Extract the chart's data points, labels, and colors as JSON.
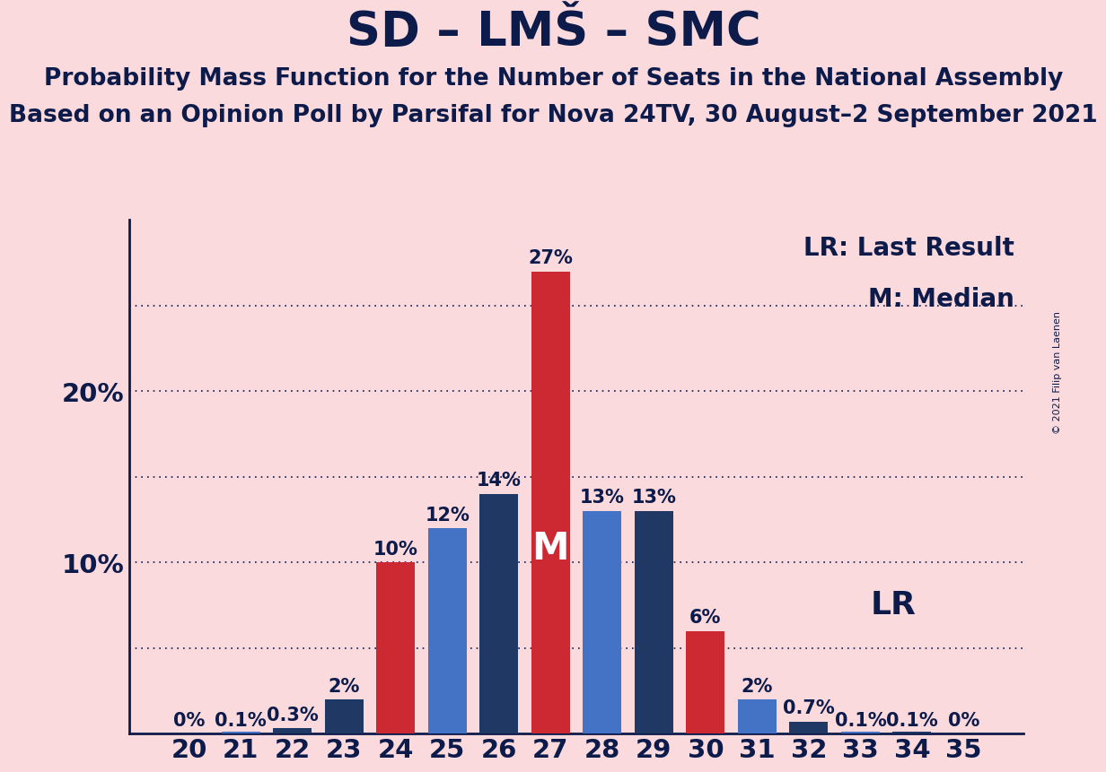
{
  "title": "SD – LMŠ – SMC",
  "subtitle1": "Probability Mass Function for the Number of Seats in the National Assembly",
  "subtitle2": "Based on an Opinion Poll by Parsifal for Nova 24TV, 30 August–2 September 2021",
  "copyright": "© 2021 Filip van Laenen",
  "seats": [
    20,
    21,
    22,
    23,
    24,
    25,
    26,
    27,
    28,
    29,
    30,
    31,
    32,
    33,
    34,
    35
  ],
  "values": [
    0.0,
    0.1,
    0.3,
    2.0,
    10.0,
    12.0,
    14.0,
    27.0,
    13.0,
    13.0,
    6.0,
    2.0,
    0.7,
    0.1,
    0.1,
    0.0
  ],
  "labels": [
    "0%",
    "0.1%",
    "0.3%",
    "2%",
    "10%",
    "12%",
    "14%",
    "27%",
    "13%",
    "13%",
    "6%",
    "2%",
    "0.7%",
    "0.1%",
    "0.1%",
    "0%"
  ],
  "colors": [
    "#CC2933",
    "#4472C4",
    "#1F3864",
    "#1F3864",
    "#CC2933",
    "#4472C4",
    "#1F3864",
    "#CC2933",
    "#4472C4",
    "#1F3864",
    "#CC2933",
    "#4472C4",
    "#1F3864",
    "#4472C4",
    "#1F3864",
    "#CC2933"
  ],
  "median_seat": 27,
  "lr_seat": 32,
  "background_color": "#FADADD",
  "lr_label_text": "LR",
  "m_label_text": "M",
  "lr_legend": "LR: Last Result",
  "m_legend": "M: Median",
  "ylim_max": 30,
  "title_fontsize": 38,
  "subtitle_fontsize": 19,
  "label_fontsize": 15,
  "tick_fontsize": 21,
  "legend_fontsize": 20,
  "lr_inline_fontsize": 26,
  "m_inline_fontsize": 30,
  "bar_width": 0.75,
  "text_color": "#0D1B4B",
  "grid_levels": [
    5,
    10,
    15,
    20,
    25
  ]
}
